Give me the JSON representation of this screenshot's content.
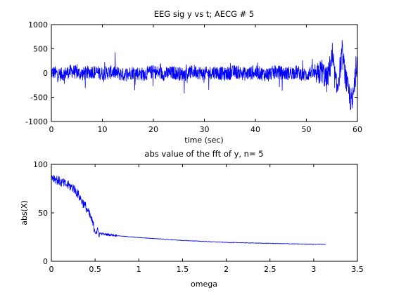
{
  "chart_data": [
    {
      "type": "line",
      "title": "EEG sig y  vs t;  AECG # 5",
      "xlabel": "time (sec)",
      "ylabel": "",
      "xlim": [
        0,
        60
      ],
      "ylim": [
        -1000,
        1000
      ],
      "xticks": [
        0,
        10,
        20,
        30,
        40,
        50,
        60
      ],
      "yticks": [
        -1000,
        -500,
        0,
        500,
        1000
      ],
      "xtick_labels": [
        "0",
        "10",
        "20",
        "30",
        "40",
        "50",
        "60"
      ],
      "ytick_labels": [
        "-1000",
        "-500",
        "0",
        "500",
        "1000"
      ],
      "grid": false,
      "line_color": "#0000ff",
      "series": [
        {
          "x": [
            0,
            2,
            4,
            6,
            8,
            10,
            12,
            14,
            16,
            18,
            20,
            22,
            24,
            26,
            28,
            30,
            32,
            34,
            36,
            38,
            40,
            42,
            44,
            46,
            48,
            50,
            51,
            52,
            53,
            54,
            55,
            56,
            57,
            58,
            59,
            60
          ],
          "y": [
            20,
            -30,
            40,
            -20,
            30,
            -10,
            25,
            -35,
            15,
            -25,
            30,
            -20,
            10,
            -30,
            35,
            -15,
            20,
            -25,
            30,
            -20,
            15,
            -30,
            25,
            -10,
            20,
            -50,
            30,
            -80,
            60,
            -150,
            300,
            -350,
            400,
            -300,
            -650,
            350
          ]
        }
      ]
    },
    {
      "type": "line",
      "title": "abs value of the fft of y, n= 5",
      "xlabel": "omega",
      "ylabel": "abs(X)",
      "xlim": [
        0,
        3.5
      ],
      "ylim": [
        0,
        100
      ],
      "xticks": [
        0,
        0.5,
        1,
        1.5,
        2,
        2.5,
        3,
        3.5
      ],
      "yticks": [
        0,
        50,
        100
      ],
      "xtick_labels": [
        "0",
        "0.5",
        "1",
        "1.5",
        "2",
        "2.5",
        "3",
        "3.5"
      ],
      "ytick_labels": [
        "0",
        "50",
        "100"
      ],
      "grid": false,
      "line_color": "#0000ff",
      "series": [
        {
          "x": [
            0,
            0.05,
            0.1,
            0.15,
            0.2,
            0.25,
            0.3,
            0.35,
            0.4,
            0.45,
            0.5,
            0.55,
            0.6,
            0.7,
            0.8,
            1.0,
            1.25,
            1.5,
            1.75,
            2.0,
            2.25,
            2.5,
            2.75,
            3.0,
            3.14
          ],
          "y": [
            88,
            85,
            82,
            80,
            78,
            76,
            70,
            62,
            55,
            45,
            32,
            29,
            28,
            27,
            26,
            24.5,
            23,
            21.5,
            20.5,
            19.5,
            19,
            18.5,
            18,
            17.5,
            17.5
          ]
        }
      ]
    }
  ]
}
